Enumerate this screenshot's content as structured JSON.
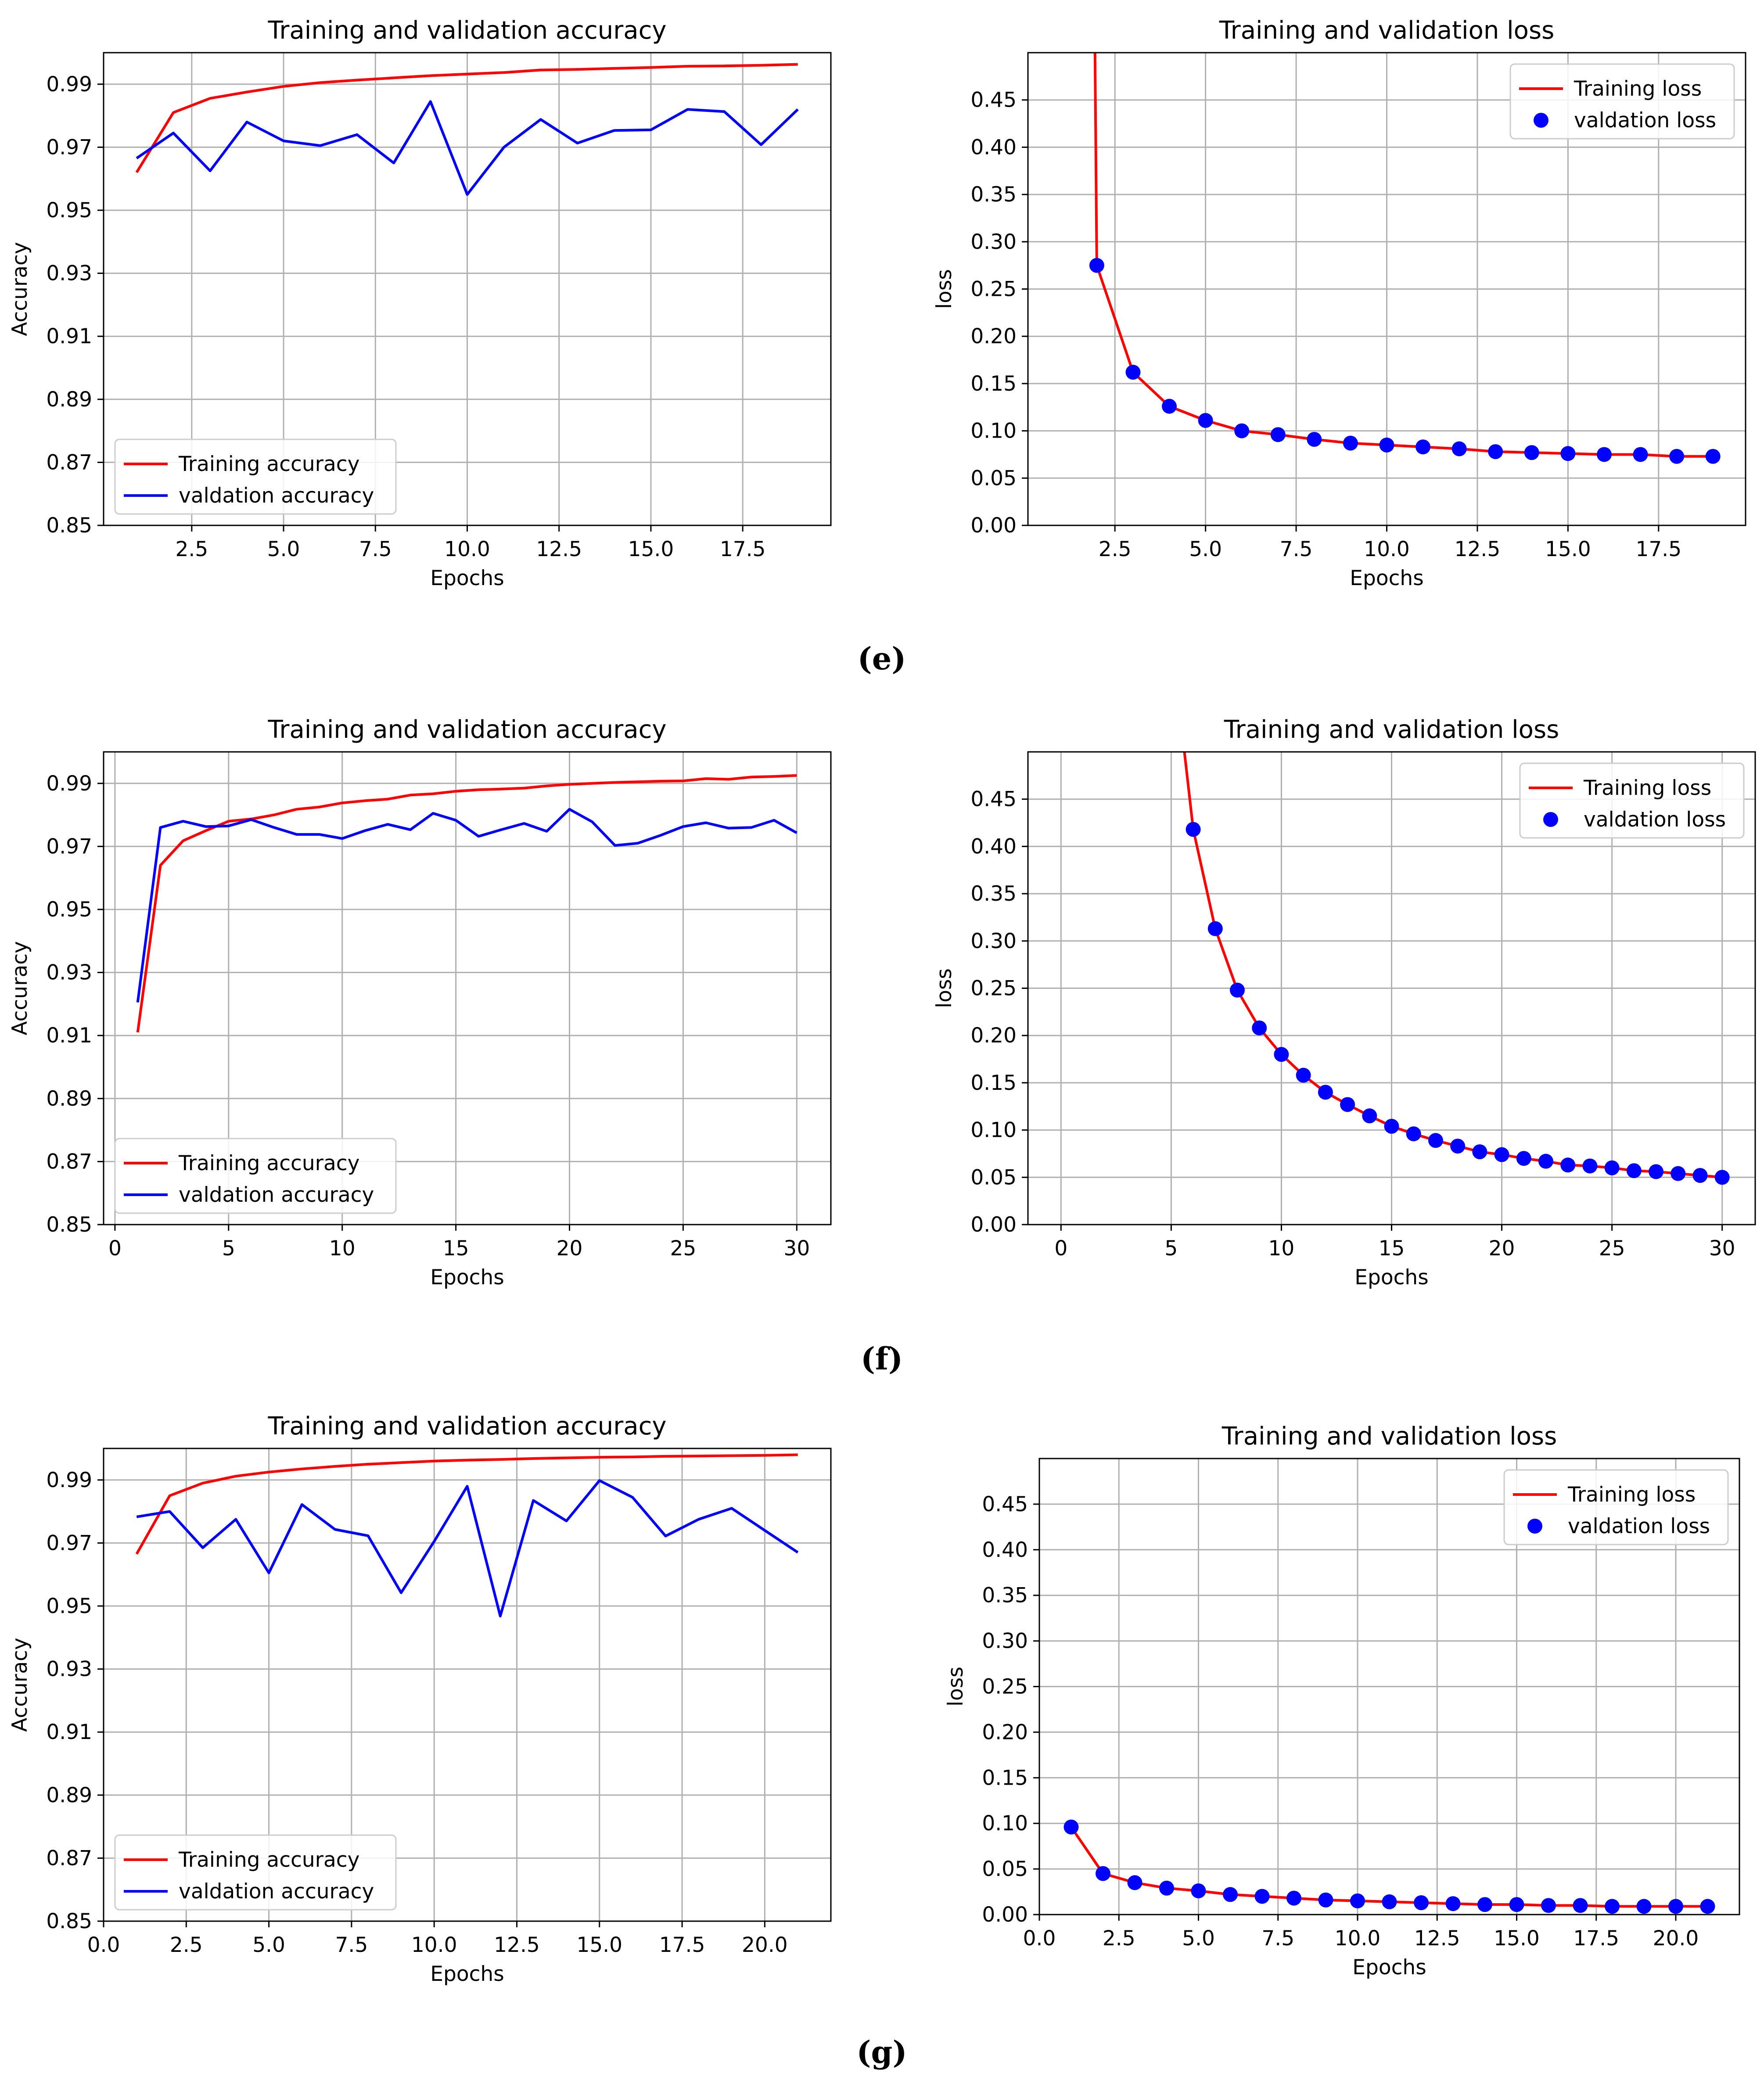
{
  "figure": {
    "labels": [
      "(e)",
      "(f)",
      "(g)"
    ]
  },
  "colors": {
    "training": "#ff0000",
    "validation": "#0000ff",
    "grid": "#b0b0b0",
    "axis": "#000000"
  },
  "chart_data": [
    {
      "id": "e-accuracy",
      "type": "line",
      "title": "Training and validation accuracy",
      "xlabel": "Epochs",
      "ylabel": "Accuracy",
      "xlim": [
        0.1,
        19.9
      ],
      "ylim": [
        0.85,
        1.0
      ],
      "xticks": [
        2.5,
        5.0,
        7.5,
        10.0,
        12.5,
        15.0,
        17.5
      ],
      "xtick_labels": [
        "2.5",
        "5.0",
        "7.5",
        "10.0",
        "12.5",
        "15.0",
        "17.5"
      ],
      "yticks": [
        0.85,
        0.87,
        0.89,
        0.91,
        0.93,
        0.95,
        0.97,
        0.99
      ],
      "ytick_labels": [
        "0.85",
        "0.87",
        "0.89",
        "0.91",
        "0.93",
        "0.95",
        "0.97",
        "0.99"
      ],
      "legend": "lower-left",
      "series": [
        {
          "name": "Training accuracy",
          "style": "line",
          "color": "#ff0000",
          "x": [
            1,
            2,
            3,
            4,
            5,
            6,
            7,
            8,
            9,
            10,
            11,
            12,
            13,
            14,
            15,
            16,
            17,
            18,
            19
          ],
          "y": [
            0.962,
            0.981,
            0.9855,
            0.9875,
            0.9893,
            0.9905,
            0.9913,
            0.992,
            0.9927,
            0.9932,
            0.9937,
            0.9945,
            0.9947,
            0.995,
            0.9953,
            0.9957,
            0.9958,
            0.996,
            0.9963
          ]
        },
        {
          "name": "valdation accuracy",
          "style": "line",
          "color": "#0000ff",
          "x": [
            1,
            2,
            3,
            4,
            5,
            6,
            7,
            8,
            9,
            10,
            11,
            12,
            13,
            14,
            15,
            16,
            17,
            18,
            19
          ],
          "y": [
            0.9665,
            0.9745,
            0.9625,
            0.978,
            0.972,
            0.9705,
            0.974,
            0.965,
            0.9845,
            0.955,
            0.97,
            0.9788,
            0.9713,
            0.9753,
            0.9755,
            0.982,
            0.9813,
            0.9708,
            0.982
          ]
        }
      ]
    },
    {
      "id": "e-loss",
      "type": "line",
      "title": "Training and validation loss",
      "xlabel": "Epochs",
      "ylabel": "loss",
      "xlim": [
        0.1,
        19.9
      ],
      "ylim": [
        0.0,
        0.5
      ],
      "xticks": [
        2.5,
        5.0,
        7.5,
        10.0,
        12.5,
        15.0,
        17.5
      ],
      "xtick_labels": [
        "2.5",
        "5.0",
        "7.5",
        "10.0",
        "12.5",
        "15.0",
        "17.5"
      ],
      "yticks": [
        0.0,
        0.05,
        0.1,
        0.15,
        0.2,
        0.25,
        0.3,
        0.35,
        0.4,
        0.45
      ],
      "ytick_labels": [
        "0.00",
        "0.05",
        "0.10",
        "0.15",
        "0.20",
        "0.25",
        "0.30",
        "0.35",
        "0.40",
        "0.45"
      ],
      "legend": "top-right",
      "series": [
        {
          "name": "Training loss",
          "style": "line",
          "color": "#ff0000",
          "x": [
            1.95,
            2,
            3,
            4,
            5,
            6,
            7,
            8,
            9,
            10,
            11,
            12,
            13,
            14,
            15,
            16,
            17,
            18,
            19
          ],
          "y": [
            0.5,
            0.275,
            0.162,
            0.126,
            0.111,
            0.1,
            0.096,
            0.091,
            0.087,
            0.085,
            0.083,
            0.081,
            0.078,
            0.077,
            0.076,
            0.075,
            0.075,
            0.073,
            0.073
          ]
        },
        {
          "name": "valdation loss",
          "style": "marker",
          "color": "#0000ff",
          "x": [
            2,
            3,
            4,
            5,
            6,
            7,
            8,
            9,
            10,
            11,
            12,
            13,
            14,
            15,
            16,
            17,
            18,
            19
          ],
          "y": [
            0.275,
            0.162,
            0.126,
            0.111,
            0.1,
            0.096,
            0.091,
            0.087,
            0.085,
            0.083,
            0.081,
            0.078,
            0.077,
            0.076,
            0.075,
            0.075,
            0.073,
            0.073
          ]
        }
      ]
    },
    {
      "id": "f-accuracy",
      "type": "line",
      "title": "Training and validation accuracy",
      "xlabel": "Epochs",
      "ylabel": "Accuracy",
      "xlim": [
        -0.5,
        31.5
      ],
      "ylim": [
        0.85,
        1.0
      ],
      "xticks": [
        0,
        5,
        10,
        15,
        20,
        25,
        30
      ],
      "xtick_labels": [
        "0",
        "5",
        "10",
        "15",
        "20",
        "25",
        "30"
      ],
      "yticks": [
        0.85,
        0.87,
        0.89,
        0.91,
        0.93,
        0.95,
        0.97,
        0.99
      ],
      "ytick_labels": [
        "0.85",
        "0.87",
        "0.89",
        "0.91",
        "0.93",
        "0.95",
        "0.97",
        "0.99"
      ],
      "legend": "lower-left",
      "series": [
        {
          "name": "Training accuracy",
          "style": "line",
          "color": "#ff0000",
          "x": [
            1,
            2,
            3,
            4,
            5,
            6,
            7,
            8,
            9,
            10,
            11,
            12,
            13,
            14,
            15,
            16,
            17,
            18,
            19,
            20,
            21,
            22,
            23,
            24,
            25,
            26,
            27,
            28,
            29,
            30
          ],
          "y": [
            0.911,
            0.964,
            0.9718,
            0.975,
            0.978,
            0.9787,
            0.98,
            0.9818,
            0.9825,
            0.9838,
            0.9845,
            0.985,
            0.9863,
            0.9867,
            0.9875,
            0.988,
            0.9882,
            0.9885,
            0.9892,
            0.9897,
            0.99,
            0.9903,
            0.9905,
            0.9907,
            0.9908,
            0.9915,
            0.9913,
            0.992,
            0.9922,
            0.9925
          ]
        },
        {
          "name": "valdation accuracy",
          "style": "line",
          "color": "#0000ff",
          "x": [
            1,
            2,
            3,
            4,
            5,
            6,
            7,
            8,
            9,
            10,
            11,
            12,
            13,
            14,
            15,
            16,
            17,
            18,
            19,
            20,
            21,
            22,
            23,
            24,
            25,
            26,
            27,
            28,
            29,
            30
          ],
          "y": [
            0.9205,
            0.976,
            0.978,
            0.9763,
            0.9765,
            0.9785,
            0.976,
            0.9738,
            0.9738,
            0.9725,
            0.975,
            0.977,
            0.9753,
            0.9805,
            0.9783,
            0.9732,
            0.9753,
            0.9773,
            0.9748,
            0.9818,
            0.9778,
            0.9703,
            0.971,
            0.9735,
            0.9763,
            0.9775,
            0.9758,
            0.976,
            0.9783,
            0.9743
          ]
        }
      ]
    },
    {
      "id": "f-loss",
      "type": "line",
      "title": "Training and validation loss",
      "xlabel": "Epochs",
      "ylabel": "loss",
      "xlim": [
        -1.5,
        31.5
      ],
      "ylim": [
        0.0,
        0.5
      ],
      "xticks": [
        0,
        5,
        10,
        15,
        20,
        25,
        30
      ],
      "xtick_labels": [
        "0",
        "5",
        "10",
        "15",
        "20",
        "25",
        "30"
      ],
      "yticks": [
        0.0,
        0.05,
        0.1,
        0.15,
        0.2,
        0.25,
        0.3,
        0.35,
        0.4,
        0.45
      ],
      "ytick_labels": [
        "0.00",
        "0.05",
        "0.10",
        "0.15",
        "0.20",
        "0.25",
        "0.30",
        "0.35",
        "0.40",
        "0.45"
      ],
      "legend": "top-right",
      "series": [
        {
          "name": "Training loss",
          "style": "line",
          "color": "#ff0000",
          "x": [
            5.6,
            6,
            7,
            8,
            9,
            10,
            11,
            12,
            13,
            14,
            15,
            16,
            17,
            18,
            19,
            20,
            21,
            22,
            23,
            24,
            25,
            26,
            27,
            28,
            29,
            30
          ],
          "y": [
            0.5,
            0.418,
            0.313,
            0.248,
            0.208,
            0.18,
            0.158,
            0.14,
            0.127,
            0.115,
            0.104,
            0.096,
            0.089,
            0.083,
            0.077,
            0.074,
            0.07,
            0.067,
            0.063,
            0.062,
            0.06,
            0.057,
            0.056,
            0.054,
            0.052,
            0.05
          ]
        },
        {
          "name": "valdation loss",
          "style": "marker",
          "color": "#0000ff",
          "x": [
            6,
            7,
            8,
            9,
            10,
            11,
            12,
            13,
            14,
            15,
            16,
            17,
            18,
            19,
            20,
            21,
            22,
            23,
            24,
            25,
            26,
            27,
            28,
            29,
            30
          ],
          "y": [
            0.418,
            0.313,
            0.248,
            0.208,
            0.18,
            0.158,
            0.14,
            0.127,
            0.115,
            0.104,
            0.096,
            0.089,
            0.083,
            0.077,
            0.074,
            0.07,
            0.067,
            0.063,
            0.062,
            0.06,
            0.057,
            0.056,
            0.054,
            0.052,
            0.05
          ]
        }
      ]
    },
    {
      "id": "g-accuracy",
      "type": "line",
      "title": "Training and validation accuracy",
      "xlabel": "Epochs",
      "ylabel": "Accuracy",
      "xlim": [
        0.0,
        22.0
      ],
      "ylim": [
        0.85,
        1.0
      ],
      "xticks": [
        0.0,
        2.5,
        5.0,
        7.5,
        10.0,
        12.5,
        15.0,
        17.5,
        20.0
      ],
      "xtick_labels": [
        "0.0",
        "2.5",
        "5.0",
        "7.5",
        "10.0",
        "12.5",
        "15.0",
        "17.5",
        "20.0"
      ],
      "yticks": [
        0.85,
        0.87,
        0.89,
        0.91,
        0.93,
        0.95,
        0.97,
        0.99
      ],
      "ytick_labels": [
        "0.85",
        "0.87",
        "0.89",
        "0.91",
        "0.93",
        "0.95",
        "0.97",
        "0.99"
      ],
      "legend": "lower-left",
      "series": [
        {
          "name": "Training accuracy",
          "style": "line",
          "color": "#ff0000",
          "x": [
            1,
            2,
            3,
            4,
            5,
            6,
            7,
            8,
            9,
            10,
            11,
            12,
            13,
            14,
            15,
            16,
            17,
            18,
            19,
            20,
            21
          ],
          "y": [
            0.9665,
            0.985,
            0.989,
            0.9912,
            0.9925,
            0.9935,
            0.9943,
            0.995,
            0.9955,
            0.996,
            0.9963,
            0.9965,
            0.9968,
            0.997,
            0.9972,
            0.9973,
            0.9975,
            0.9976,
            0.9977,
            0.9978,
            0.998
          ]
        },
        {
          "name": "valdation accuracy",
          "style": "line",
          "color": "#0000ff",
          "x": [
            1,
            2,
            3,
            4,
            5,
            6,
            7,
            8,
            9,
            10,
            11,
            12,
            13,
            14,
            15,
            16,
            17,
            18,
            19,
            20,
            21
          ],
          "y": [
            0.9783,
            0.98,
            0.9685,
            0.9775,
            0.9605,
            0.9822,
            0.9743,
            0.9723,
            0.9542,
            0.9705,
            0.988,
            0.9468,
            0.9835,
            0.977,
            0.9898,
            0.9845,
            0.9722,
            0.9775,
            0.981,
            0.974,
            0.967
          ]
        }
      ]
    },
    {
      "id": "g-loss",
      "type": "line",
      "title": "Training and validation loss",
      "xlabel": "Epochs",
      "ylabel": "loss",
      "xlim": [
        0.0,
        22.0
      ],
      "ylim": [
        0.0,
        0.5
      ],
      "xticks": [
        0.0,
        2.5,
        5.0,
        7.5,
        10.0,
        12.5,
        15.0,
        17.5,
        20.0
      ],
      "xtick_labels": [
        "0.0",
        "2.5",
        "5.0",
        "7.5",
        "10.0",
        "12.5",
        "15.0",
        "17.5",
        "20.0"
      ],
      "yticks": [
        0.0,
        0.05,
        0.1,
        0.15,
        0.2,
        0.25,
        0.3,
        0.35,
        0.4,
        0.45
      ],
      "ytick_labels": [
        "0.00",
        "0.05",
        "0.10",
        "0.15",
        "0.20",
        "0.25",
        "0.30",
        "0.35",
        "0.40",
        "0.45"
      ],
      "legend": "top-right",
      "series": [
        {
          "name": "Training loss",
          "style": "line",
          "color": "#ff0000",
          "x": [
            1,
            2,
            3,
            4,
            5,
            6,
            7,
            8,
            9,
            10,
            11,
            12,
            13,
            14,
            15,
            16,
            17,
            18,
            19,
            20,
            21
          ],
          "y": [
            0.096,
            0.045,
            0.035,
            0.029,
            0.026,
            0.022,
            0.02,
            0.018,
            0.016,
            0.015,
            0.014,
            0.013,
            0.012,
            0.011,
            0.011,
            0.01,
            0.01,
            0.009,
            0.009,
            0.009,
            0.009
          ]
        },
        {
          "name": "valdation loss",
          "style": "marker",
          "color": "#0000ff",
          "x": [
            1,
            2,
            3,
            4,
            5,
            6,
            7,
            8,
            9,
            10,
            11,
            12,
            13,
            14,
            15,
            16,
            17,
            18,
            19,
            20,
            21
          ],
          "y": [
            0.096,
            0.045,
            0.035,
            0.029,
            0.026,
            0.022,
            0.02,
            0.018,
            0.016,
            0.015,
            0.014,
            0.013,
            0.012,
            0.011,
            0.011,
            0.01,
            0.01,
            0.009,
            0.009,
            0.009,
            0.009
          ]
        }
      ]
    }
  ]
}
